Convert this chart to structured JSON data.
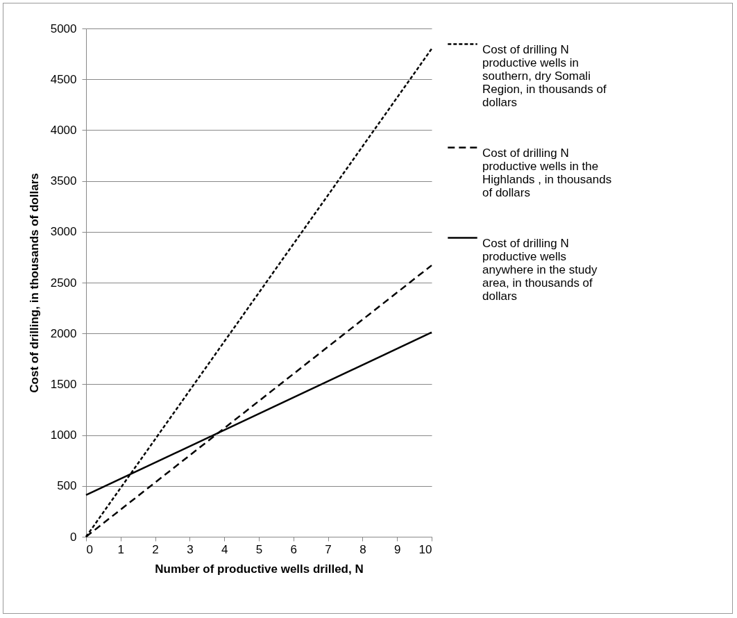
{
  "chart_data": {
    "type": "line",
    "xlabel": "Number of productive wells drilled, N",
    "ylabel": "Cost of drilling, in thousands of dollars",
    "xlim": [
      0,
      10
    ],
    "xticks": [
      0,
      1,
      2,
      3,
      4,
      5,
      6,
      7,
      8,
      9,
      10
    ],
    "ylim": [
      0,
      5000
    ],
    "yticks": [
      0,
      500,
      1000,
      1500,
      2000,
      2500,
      3000,
      3500,
      4000,
      4500,
      5000
    ],
    "grid": "y",
    "x": [
      0,
      10
    ],
    "legend": "right",
    "marker": "none",
    "series": [
      {
        "name": "Cost of drilling N productive wells in southern, dry Somali Region, in thousands of dollars",
        "color": "#000000",
        "line_style": "dotted",
        "values": [
          0,
          4800
        ]
      },
      {
        "name": "Cost of drilling N productive wells in the Highlands , in thousands of dollars",
        "color": "#000000",
        "line_style": "dashed",
        "values": [
          0,
          2670
        ]
      },
      {
        "name": "Cost of drilling N productive wells anywhere in the study area, in thousands of dollars",
        "color": "#000000",
        "line_style": "solid",
        "values": [
          410,
          2010
        ]
      }
    ]
  }
}
